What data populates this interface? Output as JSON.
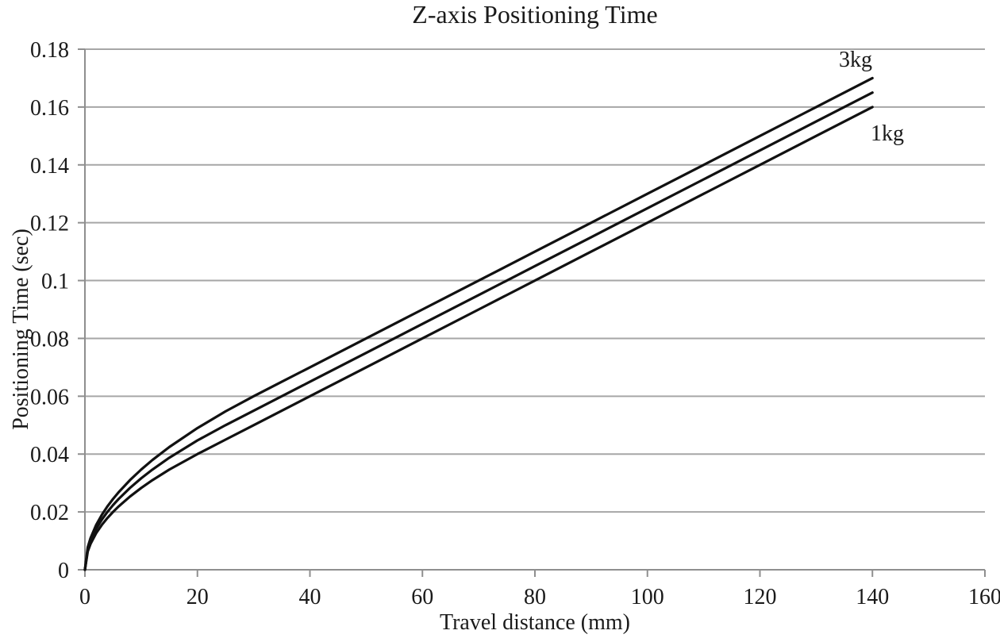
{
  "chart_data": {
    "type": "line",
    "title": "Z-axis Positioning Time",
    "xlabel": "Travel distance (mm)",
    "ylabel": "Positioning Time (sec)",
    "xlim": [
      0,
      160
    ],
    "ylim": [
      0,
      0.18
    ],
    "grid": "horizontal-major-only",
    "legend": "inline-labels-at-line-ends",
    "x_ticks": [
      {
        "label": "0",
        "value": 0
      },
      {
        "label": "20",
        "value": 20
      },
      {
        "label": "40",
        "value": 40
      },
      {
        "label": "60",
        "value": 60
      },
      {
        "label": "80",
        "value": 80
      },
      {
        "label": "100",
        "value": 100
      },
      {
        "label": "120",
        "value": 120
      },
      {
        "label": "140",
        "value": 140
      },
      {
        "label": "160",
        "value": 160
      }
    ],
    "y_ticks": [
      {
        "label": "0",
        "value": 0
      },
      {
        "label": "0.02",
        "value": 0.02
      },
      {
        "label": "0.04",
        "value": 0.04
      },
      {
        "label": "0.06",
        "value": 0.06
      },
      {
        "label": "0.08",
        "value": 0.08
      },
      {
        "label": "0.1",
        "value": 0.1
      },
      {
        "label": "0.12",
        "value": 0.12
      },
      {
        "label": "0.14",
        "value": 0.14
      },
      {
        "label": "0.16",
        "value": 0.16
      },
      {
        "label": "0.18",
        "value": 0.18
      }
    ],
    "x": [
      0,
      0.5,
      1,
      2,
      3,
      4,
      5,
      6,
      8,
      10,
      12,
      15,
      20,
      25,
      30,
      35,
      40,
      50,
      60,
      70,
      80,
      90,
      100,
      110,
      120,
      130,
      140
    ],
    "series": [
      {
        "name": "1kg",
        "label": "1kg",
        "y": [
          0,
          0.00632,
          0.00894,
          0.01265,
          0.01549,
          0.01789,
          0.02,
          0.02191,
          0.0253,
          0.02828,
          0.03098,
          0.03464,
          0.04,
          0.045,
          0.05,
          0.055,
          0.06,
          0.07,
          0.08,
          0.09,
          0.1,
          0.11,
          0.12,
          0.13,
          0.14,
          0.15,
          0.16
        ]
      },
      {
        "name": "middle-curve-unlabeled",
        "label": "",
        "y": [
          0,
          0.00707,
          0.01,
          0.01414,
          0.01732,
          0.02,
          0.02236,
          0.02449,
          0.02828,
          0.03162,
          0.03464,
          0.03873,
          0.04472,
          0.05,
          0.055,
          0.06,
          0.065,
          0.075,
          0.085,
          0.095,
          0.105,
          0.115,
          0.125,
          0.135,
          0.145,
          0.155,
          0.165
        ]
      },
      {
        "name": "3kg",
        "label": "3kg",
        "y": [
          0,
          0.00775,
          0.01095,
          0.01549,
          0.01897,
          0.02191,
          0.02449,
          0.02683,
          0.03098,
          0.03464,
          0.03795,
          0.04243,
          0.04899,
          0.05477,
          0.06,
          0.065,
          0.07,
          0.08,
          0.09,
          0.1,
          0.11,
          0.12,
          0.13,
          0.14,
          0.15,
          0.16,
          0.17
        ]
      }
    ],
    "colors": {
      "curve": "#111111",
      "gridline": "#a6a6a6",
      "axis": "#8f8f8f",
      "text": "#1a1a1a",
      "background": "#ffffff"
    }
  }
}
